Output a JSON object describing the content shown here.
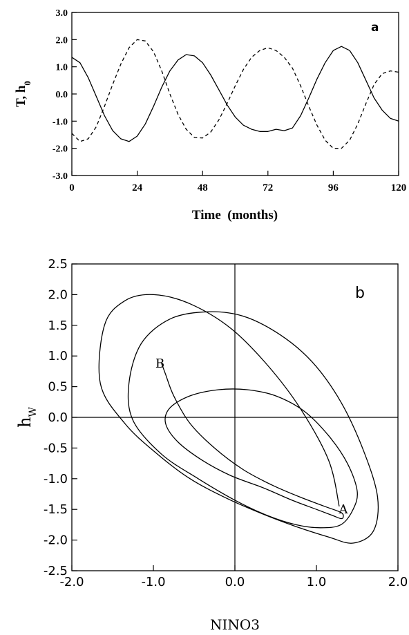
{
  "chart_data": [
    {
      "panel": "a",
      "type": "line",
      "ylabel_main": "T, h",
      "ylabel_sub": "0",
      "xlabel": "Time  (months)",
      "xlim": [
        0,
        120
      ],
      "ylim": [
        -3.0,
        3.0
      ],
      "xticks": [
        0,
        24,
        48,
        72,
        96,
        120
      ],
      "xtick_labels": [
        "0",
        "24",
        "48",
        "72",
        "96",
        "120"
      ],
      "yticks": [
        3.0,
        2.0,
        1.0,
        0.0,
        -1.0,
        -2.0,
        -3.0
      ],
      "ytick_labels": [
        "3.0",
        "2.0",
        "1.0",
        "0.0",
        "-1.0",
        "-2.0",
        "-3.0"
      ],
      "series": [
        {
          "style": "solid",
          "x": [
            0,
            3,
            6,
            9,
            12,
            15,
            18,
            21,
            24,
            27,
            30,
            33,
            36,
            39,
            42,
            45,
            48,
            51,
            54,
            57,
            60,
            63,
            66,
            69,
            72,
            75,
            78,
            81,
            84,
            87,
            90,
            93,
            96,
            99,
            102,
            105,
            108,
            111,
            114,
            117,
            120
          ],
          "y": [
            1.35,
            1.15,
            0.6,
            -0.1,
            -0.8,
            -1.35,
            -1.65,
            -1.75,
            -1.55,
            -1.1,
            -0.45,
            0.25,
            0.85,
            1.25,
            1.45,
            1.4,
            1.15,
            0.7,
            0.15,
            -0.4,
            -0.85,
            -1.15,
            -1.3,
            -1.38,
            -1.38,
            -1.3,
            -1.35,
            -1.25,
            -0.8,
            -0.15,
            0.55,
            1.15,
            1.6,
            1.75,
            1.6,
            1.15,
            0.5,
            -0.15,
            -0.6,
            -0.9,
            -1.0
          ]
        },
        {
          "style": "dashed",
          "x": [
            0,
            3,
            6,
            9,
            12,
            15,
            18,
            21,
            24,
            27,
            30,
            33,
            36,
            39,
            42,
            45,
            48,
            51,
            54,
            57,
            60,
            63,
            66,
            69,
            72,
            75,
            78,
            81,
            84,
            87,
            90,
            93,
            96,
            99,
            102,
            105,
            108,
            111,
            114,
            117,
            120
          ],
          "y": [
            -1.45,
            -1.75,
            -1.65,
            -1.2,
            -0.45,
            0.35,
            1.1,
            1.7,
            2.0,
            1.95,
            1.55,
            0.85,
            0.0,
            -0.75,
            -1.3,
            -1.6,
            -1.62,
            -1.4,
            -0.95,
            -0.35,
            0.3,
            0.9,
            1.35,
            1.6,
            1.7,
            1.6,
            1.35,
            0.95,
            0.3,
            -0.45,
            -1.15,
            -1.7,
            -2.0,
            -2.0,
            -1.7,
            -1.1,
            -0.35,
            0.35,
            0.75,
            0.85,
            0.8
          ]
        }
      ],
      "annotations": [
        {
          "text": "a"
        }
      ]
    },
    {
      "panel": "b",
      "type": "line",
      "ylabel_main": "h",
      "ylabel_sub": "W",
      "xlabel": "NINO3",
      "xlim": [
        -2.0,
        2.0
      ],
      "ylim": [
        -2.5,
        2.5
      ],
      "xticks": [
        -2.0,
        -1.0,
        0.0,
        1.0,
        2.0
      ],
      "xtick_labels": [
        "-2.0",
        "-1.0",
        "0.0",
        "1.0",
        "2.0"
      ],
      "yticks": [
        2.5,
        2.0,
        1.5,
        1.0,
        0.5,
        0.0,
        -0.5,
        -1.0,
        -1.5,
        -2.0,
        -2.5
      ],
      "ytick_labels": [
        "2.5",
        "2.0",
        "1.5",
        "1.0",
        "0.5",
        "0.0",
        "-0.5",
        "-1.0",
        "-1.5",
        "-2.0",
        "-2.5"
      ],
      "reference_lines": {
        "x": 0.0,
        "y": 0.0
      },
      "trajectory": {
        "x": [
          -0.9,
          -0.85,
          -0.75,
          -0.55,
          -0.25,
          0.1,
          0.45,
          0.8,
          1.1,
          1.3,
          1.33,
          1.3,
          1.2,
          1.0,
          0.7,
          0.35,
          -0.05,
          -0.4,
          -0.7,
          -0.85,
          -0.8,
          -0.55,
          -0.2,
          0.15,
          0.5,
          0.85,
          1.15,
          1.38,
          1.5,
          1.45,
          1.3,
          1.05,
          0.75,
          0.4,
          0.0,
          -0.45,
          -0.9,
          -1.25,
          -1.3,
          -1.15,
          -0.8,
          -0.35,
          0.1,
          0.55,
          0.95,
          1.3,
          1.58,
          1.75,
          1.7,
          1.45,
          1.15,
          0.75,
          0.35,
          -0.1,
          -0.55,
          -0.95,
          -1.35,
          -1.65,
          -1.6,
          -1.35,
          -1.0,
          -0.55,
          -0.05,
          0.4,
          0.8,
          1.15,
          1.28
        ],
        "y": [
          0.88,
          0.7,
          0.35,
          -0.1,
          -0.5,
          -0.85,
          -1.1,
          -1.3,
          -1.45,
          -1.55,
          -1.62,
          -1.65,
          -1.6,
          -1.5,
          -1.35,
          -1.15,
          -0.95,
          -0.7,
          -0.4,
          -0.1,
          0.15,
          0.35,
          0.45,
          0.45,
          0.35,
          0.1,
          -0.3,
          -0.75,
          -1.2,
          -1.5,
          -1.75,
          -1.8,
          -1.75,
          -1.6,
          -1.35,
          -1.0,
          -0.6,
          -0.05,
          0.55,
          1.2,
          1.6,
          1.72,
          1.65,
          1.35,
          0.9,
          0.25,
          -0.55,
          -1.3,
          -1.85,
          -2.05,
          -1.95,
          -1.78,
          -1.58,
          -1.32,
          -1.0,
          -0.6,
          -0.1,
          0.55,
          1.5,
          1.9,
          2.0,
          1.85,
          1.45,
          0.85,
          0.15,
          -0.7,
          -1.45
        ]
      },
      "annotations": [
        {
          "text": "b"
        },
        {
          "text": "B",
          "x": -0.92,
          "y": 0.88
        },
        {
          "text": "A",
          "x": 1.33,
          "y": -1.5
        }
      ]
    }
  ]
}
